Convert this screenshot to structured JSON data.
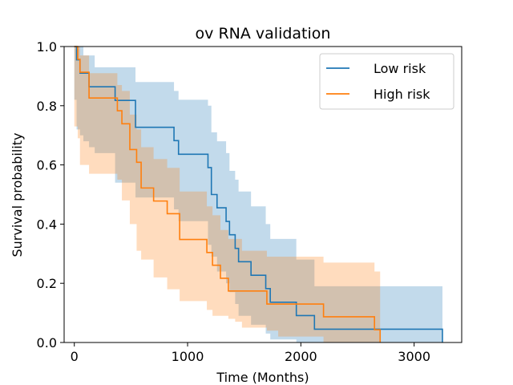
{
  "chart_data": {
    "type": "line",
    "title": "ov RNA validation",
    "xlabel": "Time (Months)",
    "ylabel": "Survival probability",
    "xlim": [
      -90,
      3420
    ],
    "ylim": [
      0.0,
      1.0
    ],
    "xticks": [
      0,
      1000,
      2000,
      3000
    ],
    "xtick_labels": [
      "0",
      "1000",
      "2000",
      "3000"
    ],
    "yticks": [
      0.0,
      0.2,
      0.4,
      0.6,
      0.8,
      1.0
    ],
    "ytick_labels": [
      "0.0",
      "0.2",
      "0.4",
      "0.6",
      "0.8",
      "1.0"
    ],
    "grid": false,
    "legend": {
      "position": "upper right"
    },
    "step": "post",
    "series": [
      {
        "name": "Low risk",
        "color": "#1f77b4",
        "fill_color": "#1f77b4",
        "x": [
          0,
          20,
          50,
          80,
          130,
          180,
          360,
          540,
          880,
          920,
          1180,
          1210,
          1260,
          1340,
          1370,
          1420,
          1450,
          1560,
          1690,
          1730,
          1960,
          2120,
          3250
        ],
        "y": [
          1.0,
          0.955,
          0.91,
          0.91,
          0.864,
          0.864,
          0.818,
          0.727,
          0.682,
          0.636,
          0.591,
          0.5,
          0.455,
          0.409,
          0.364,
          0.318,
          0.273,
          0.227,
          0.182,
          0.136,
          0.091,
          0.045,
          0.0
        ],
        "lower": [
          0.9,
          0.82,
          0.72,
          0.7,
          0.68,
          0.66,
          0.64,
          0.54,
          0.49,
          0.45,
          0.41,
          0.33,
          0.29,
          0.24,
          0.2,
          0.17,
          0.13,
          0.09,
          0.06,
          0.03,
          0.01,
          0.0,
          0.0
        ],
        "upper": [
          1.0,
          1.0,
          1.0,
          0.97,
          0.97,
          0.93,
          0.93,
          0.88,
          0.85,
          0.82,
          0.8,
          0.71,
          0.68,
          0.64,
          0.58,
          0.55,
          0.51,
          0.46,
          0.4,
          0.35,
          0.28,
          0.19,
          0.19
        ]
      },
      {
        "name": "High risk",
        "color": "#ff7f0e",
        "fill_color": "#ff7f0e",
        "x": [
          0,
          30,
          50,
          130,
          380,
          420,
          490,
          550,
          590,
          700,
          820,
          930,
          1170,
          1220,
          1290,
          1360,
          1420,
          1480,
          1700,
          1800,
          2200,
          2650,
          2700
        ],
        "y": [
          1.0,
          0.957,
          0.913,
          0.826,
          0.783,
          0.739,
          0.652,
          0.609,
          0.522,
          0.478,
          0.435,
          0.348,
          0.304,
          0.261,
          0.217,
          0.174,
          0.174,
          0.174,
          0.13,
          0.13,
          0.087,
          0.043,
          0.0
        ],
        "lower": [
          0.78,
          0.73,
          0.69,
          0.6,
          0.57,
          0.55,
          0.48,
          0.4,
          0.31,
          0.28,
          0.22,
          0.18,
          0.14,
          0.11,
          0.09,
          0.09,
          0.08,
          0.07,
          0.05,
          0.04,
          0.02,
          0.0,
          0.0
        ],
        "upper": [
          1.0,
          1.0,
          0.97,
          0.91,
          0.87,
          0.85,
          0.77,
          0.72,
          0.66,
          0.62,
          0.59,
          0.51,
          0.46,
          0.43,
          0.38,
          0.35,
          0.35,
          0.31,
          0.29,
          0.29,
          0.27,
          0.24,
          0.24
        ]
      }
    ]
  }
}
